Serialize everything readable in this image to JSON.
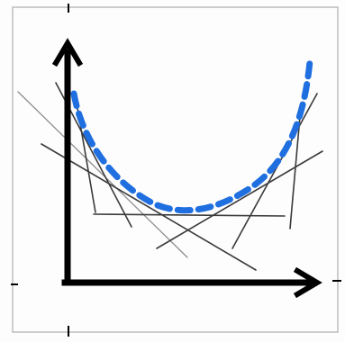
{
  "colors": {
    "frame": "#bdbdbd",
    "axis": "#000000",
    "curve": "#1f6fe0",
    "tangent_dark": "#3a3a3a",
    "tangent_light": "#8e8e8e"
  }
}
